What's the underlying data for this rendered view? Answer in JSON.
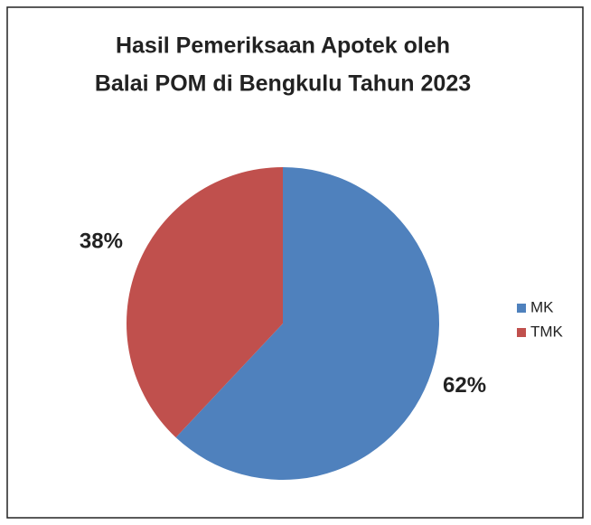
{
  "chart_data": {
    "type": "pie",
    "title": [
      "Hasil Pemeriksaan Apotek oleh",
      "Balai POM di Bengkulu Tahun 2023"
    ],
    "categories": [
      "MK",
      "TMK"
    ],
    "values": [
      62,
      38
    ],
    "value_labels": [
      "62%",
      "38%"
    ],
    "colors": [
      "#4f81bd",
      "#c0504d"
    ],
    "legend": "right"
  }
}
